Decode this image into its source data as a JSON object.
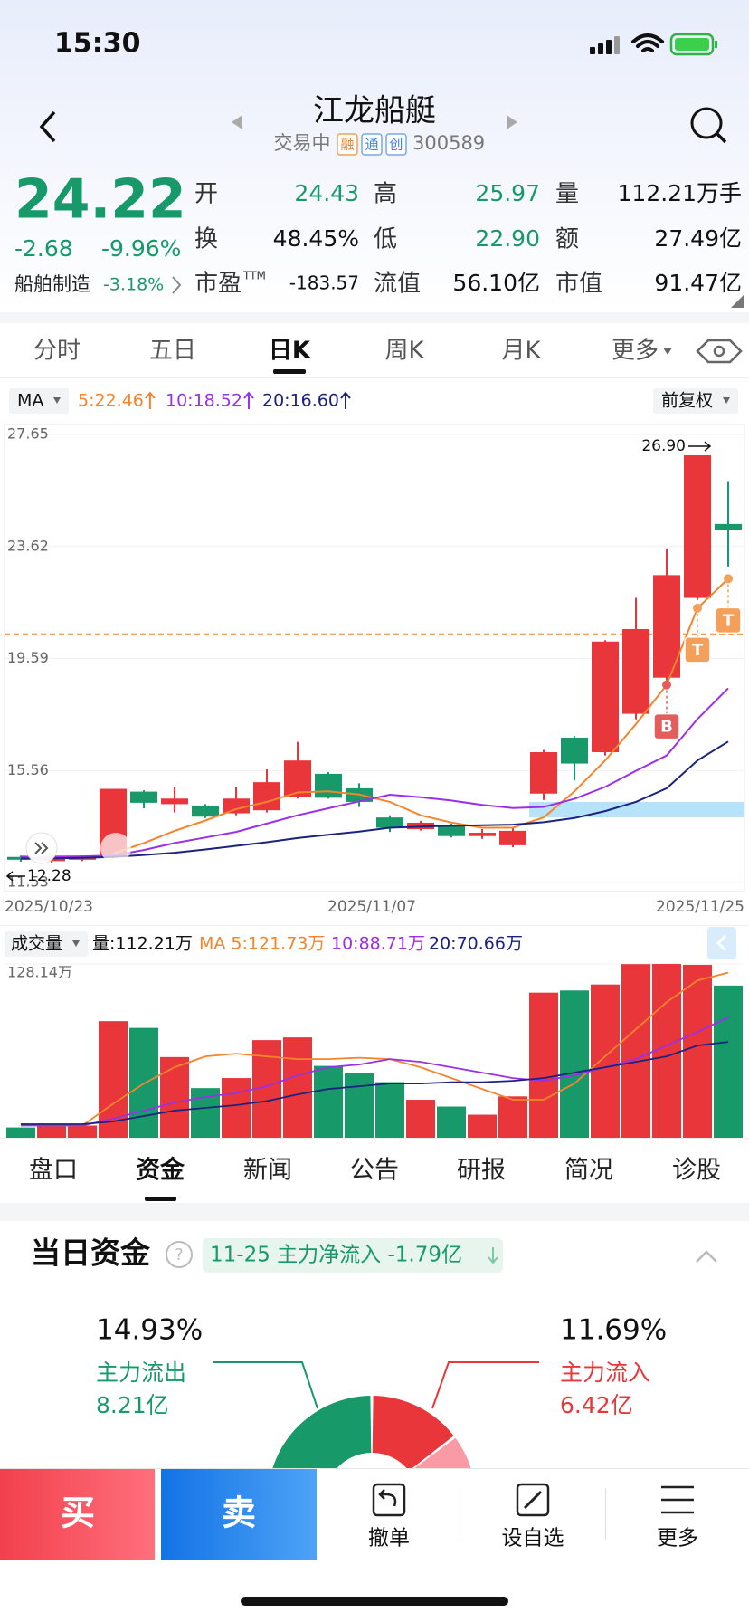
{
  "status_bar": {
    "time": "15:30"
  },
  "header": {
    "name": "江龙船艇",
    "status": "交易中",
    "badges": [
      "融",
      "通",
      "创"
    ],
    "code": "300589"
  },
  "quote": {
    "price": "24.22",
    "change": "-2.68",
    "change_pct": "-9.96%",
    "sector": "船舶制造",
    "sector_pct": "-3.18%",
    "stats": [
      {
        "label": "开",
        "value": "24.43"
      },
      {
        "label": "高",
        "value": "25.97"
      },
      {
        "label": "量",
        "value": "112.21万手"
      },
      {
        "label": "换",
        "value": "48.45%"
      },
      {
        "label": "低",
        "value": "22.90"
      },
      {
        "label": "额",
        "value": "27.49亿"
      },
      {
        "label": "市盈",
        "sup": "TTM",
        "value": "-183.57"
      },
      {
        "label": "流值",
        "value": "56.10亿"
      },
      {
        "label": "市值",
        "value": "91.47亿"
      }
    ]
  },
  "period_tabs": [
    "分时",
    "五日",
    "日K",
    "周K",
    "月K",
    "更多"
  ],
  "ma_legend": {
    "label": "MA",
    "adjust": "前复权"
  },
  "chart_data": [
    {
      "type": "candlestick",
      "categories": [
        "2025/10/23",
        null,
        null,
        null,
        null,
        null,
        null,
        null,
        null,
        null,
        null,
        "2025/11/07",
        null,
        null,
        null,
        null,
        null,
        null,
        null,
        null,
        null,
        null,
        null,
        "2025/11/25"
      ],
      "open": [
        12.45,
        12.3,
        12.35,
        12.45,
        14.8,
        14.35,
        14.3,
        14.02,
        14.13,
        14.62,
        15.44,
        14.92,
        13.87,
        13.45,
        13.6,
        13.2,
        12.87,
        14.73,
        16.74,
        16.22,
        17.6,
        18.9,
        21.77,
        24.43
      ],
      "high": [
        12.5,
        12.45,
        12.5,
        14.9,
        14.85,
        14.95,
        14.35,
        14.95,
        15.6,
        16.59,
        15.5,
        15.1,
        13.95,
        13.75,
        13.65,
        13.45,
        13.5,
        16.3,
        16.8,
        20.25,
        21.77,
        23.55,
        26.9,
        25.97
      ],
      "low": [
        12.28,
        12.25,
        12.3,
        12.4,
        14.2,
        14.05,
        13.85,
        13.95,
        14.05,
        14.55,
        14.55,
        14.25,
        13.35,
        13.4,
        13.15,
        13.1,
        12.8,
        14.5,
        15.2,
        16.1,
        17.4,
        18.8,
        21.7,
        22.9
      ],
      "close": [
        12.35,
        12.4,
        12.45,
        14.9,
        14.4,
        14.55,
        13.9,
        14.55,
        15.14,
        15.92,
        14.58,
        14.43,
        13.5,
        13.68,
        13.2,
        13.32,
        13.39,
        16.22,
        15.81,
        20.2,
        20.65,
        22.59,
        26.9,
        24.22
      ],
      "up_color": "#e8363a",
      "down_color": "#17996a",
      "ylim": [
        11.53,
        27.65
      ],
      "yticks": [
        27.65,
        23.62,
        19.59,
        15.56,
        11.53
      ],
      "series": [
        {
          "name": "5:22.46",
          "color": "#f5842c",
          "values": [
            null,
            null,
            null,
            12.57,
            12.95,
            13.39,
            13.76,
            14.17,
            14.43,
            14.77,
            14.81,
            14.7,
            14.43,
            13.95,
            13.69,
            13.5,
            13.5,
            13.87,
            14.81,
            15.92,
            17.23,
            18.64,
            21.4,
            22.46
          ]
        },
        {
          "name": "10:18.52",
          "color": "#9b30e8",
          "values": [
            12.46,
            12.46,
            12.47,
            12.5,
            12.7,
            12.95,
            13.15,
            13.35,
            13.65,
            13.95,
            14.2,
            14.45,
            14.69,
            14.6,
            14.48,
            14.32,
            14.21,
            14.25,
            14.54,
            14.97,
            15.55,
            16.1,
            17.41,
            18.52
          ]
        },
        {
          "name": "20:16.60",
          "color": "#1b237e",
          "values": [
            12.39,
            12.4,
            12.42,
            12.45,
            12.52,
            12.6,
            12.72,
            12.85,
            12.98,
            13.13,
            13.25,
            13.36,
            13.5,
            13.54,
            13.57,
            13.59,
            13.61,
            13.7,
            13.85,
            14.1,
            14.43,
            14.92,
            15.92,
            16.6
          ]
        }
      ],
      "annotations": [
        "12.28",
        null,
        null,
        null,
        null,
        null,
        null,
        null,
        null,
        null,
        null,
        null,
        null,
        null,
        null,
        null,
        null,
        null,
        null,
        null,
        null,
        null,
        "26.90",
        null
      ],
      "signals": [
        null,
        null,
        null,
        null,
        null,
        null,
        null,
        null,
        null,
        null,
        null,
        null,
        null,
        null,
        null,
        null,
        null,
        null,
        null,
        null,
        null,
        {
          "label": "B",
          "color": "#e35d5d"
        },
        {
          "label": "T",
          "color": "#f4a05a"
        },
        {
          "label": "T",
          "color": "#f4a05a"
        }
      ],
      "reference_line": 20.46,
      "zone": [
        13.87,
        14.43
      ]
    },
    {
      "type": "bar",
      "title": "成交量",
      "subtitle": "量:112.21万",
      "values": [
        7.6,
        9,
        9,
        86,
        81,
        59.5,
        36.6,
        44,
        72,
        74,
        53,
        48,
        41,
        28,
        23,
        17,
        30.5,
        107,
        108.6,
        113,
        128,
        128.14,
        127.5,
        112.21
      ],
      "ylim": [
        0,
        128.14
      ],
      "yticks": [
        {
          "value": 128.14,
          "label": "128.14万"
        }
      ],
      "series": [
        {
          "name": "MA 5:121.73万",
          "color": "#f5842c",
          "values": [
            10,
            9,
            9,
            25,
            40,
            52,
            60,
            62,
            60,
            58,
            58,
            59,
            58,
            52,
            44,
            36,
            28,
            28,
            40,
            60,
            80,
            100,
            116,
            121.73
          ]
        },
        {
          "name": "10:88.71万",
          "color": "#9b30e8",
          "values": [
            9,
            9,
            9,
            14,
            20,
            26,
            30,
            33,
            38,
            46,
            52,
            54,
            58,
            56,
            52,
            48,
            44,
            42,
            46,
            52,
            58,
            68,
            78,
            88.71
          ]
        },
        {
          "name": "20:70.66万",
          "color": "#1b237e",
          "values": [
            10,
            10,
            10,
            12,
            16,
            20,
            22,
            24,
            27,
            32,
            36,
            38,
            40,
            40,
            41,
            41,
            42,
            44,
            48,
            52,
            56,
            60,
            68,
            70.66
          ]
        }
      ]
    }
  ],
  "info_tabs": [
    "盘口",
    "资金",
    "新闻",
    "公告",
    "研报",
    "简况",
    "诊股"
  ],
  "fund_flow": {
    "title": "当日资金",
    "summary": "11-25 主力净流入 -1.79亿",
    "outflow": {
      "pct": "14.93%",
      "label": "主力流出",
      "amount": "8.21亿"
    },
    "inflow": {
      "pct": "11.69%",
      "label": "主力流入",
      "amount": "6.42亿"
    }
  },
  "bottom_bar": {
    "buy": "买",
    "sell": "卖",
    "actions": [
      "撤单",
      "设自选",
      "更多"
    ]
  }
}
